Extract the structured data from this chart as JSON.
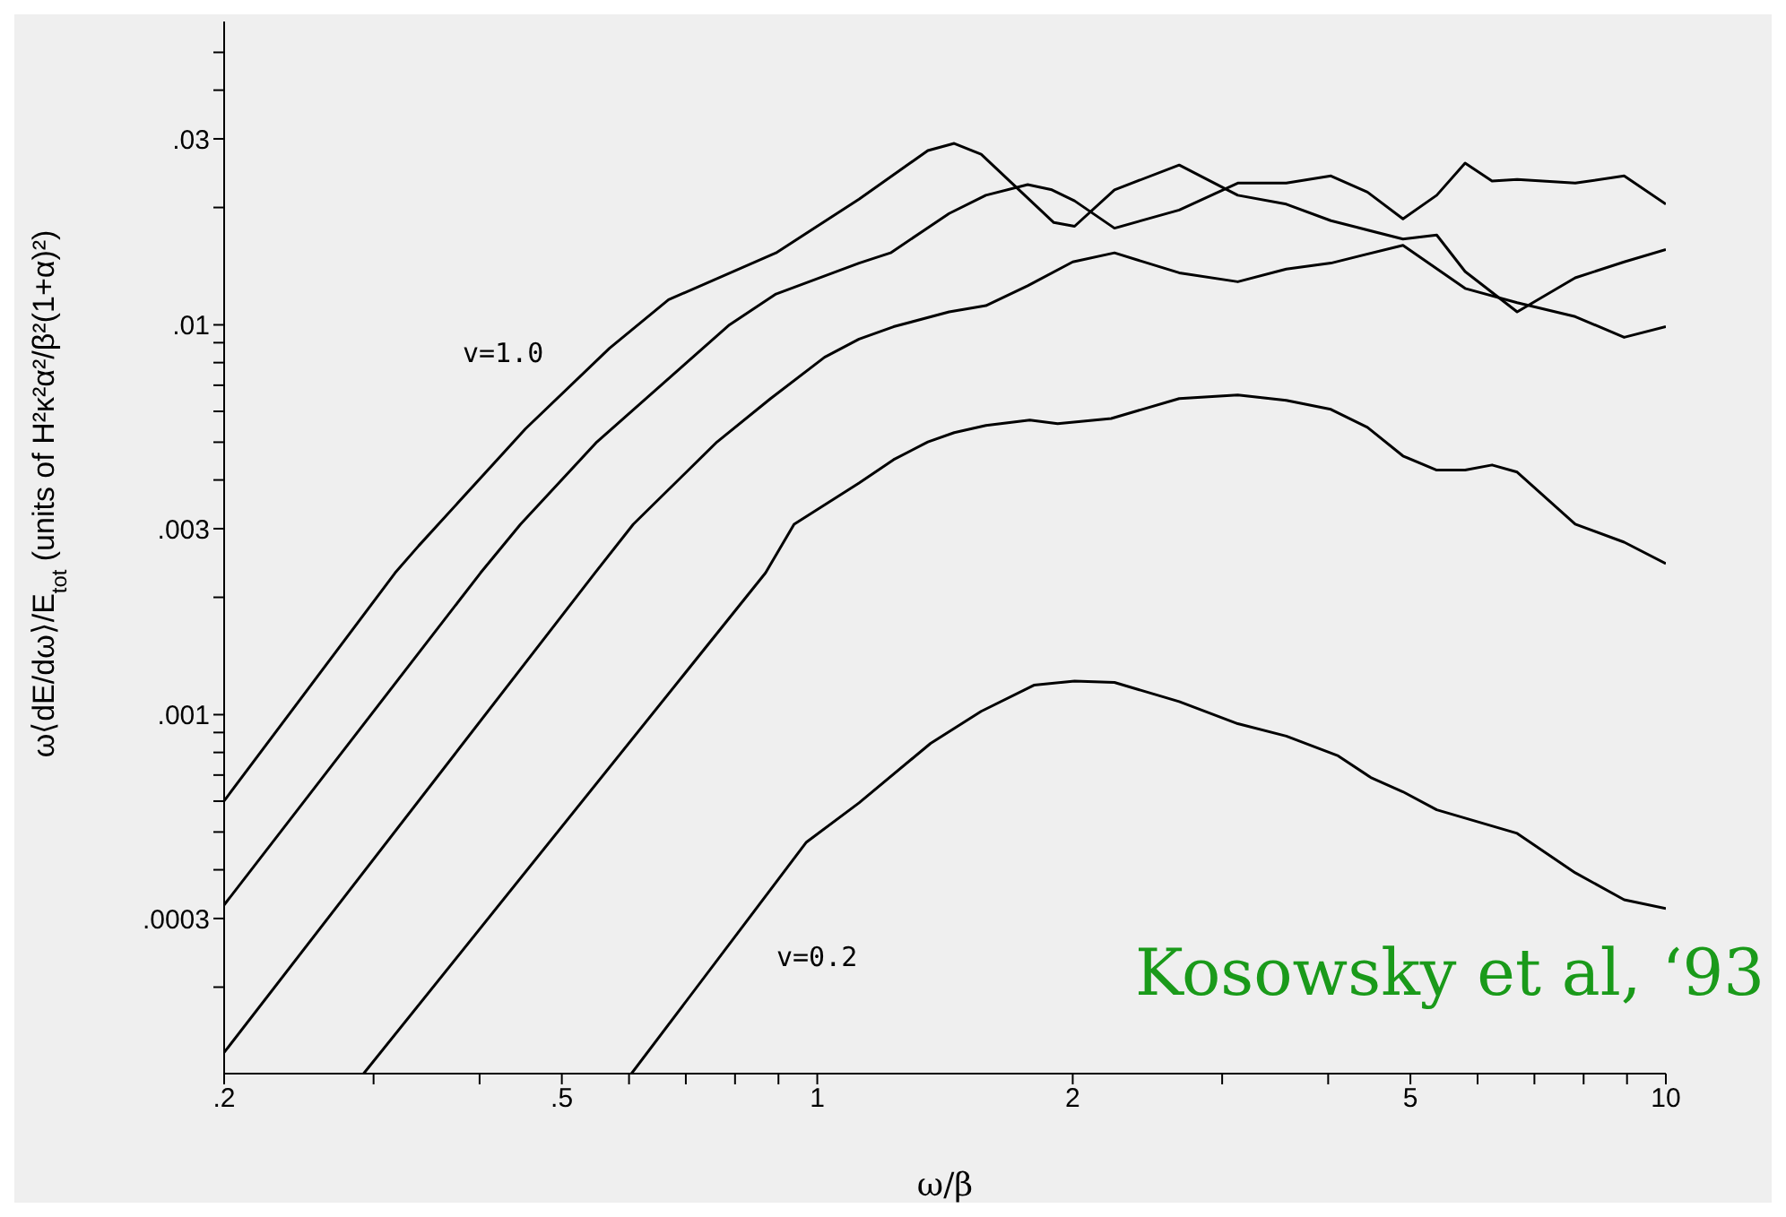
{
  "chart_data": {
    "type": "line",
    "xlabel": "ω/β",
    "ylabel": "ω⟨dE/dω⟩/E$_{tot}$    (units of H²κ²α²/β²(1+α)²)",
    "log": "xy",
    "grid": false,
    "legend": false,
    "marker": "none",
    "line_style": "solid",
    "xlim": [
      0.2,
      10
    ],
    "ylim": [
      0.00012,
      0.06
    ],
    "xticks": [
      {
        "value": 0.2,
        "label": ".2"
      },
      {
        "value": 0.3,
        "label": null
      },
      {
        "value": 0.4,
        "label": null
      },
      {
        "value": 0.5,
        "label": ".5"
      },
      {
        "value": 0.6,
        "label": null
      },
      {
        "value": 0.7,
        "label": null
      },
      {
        "value": 0.8,
        "label": null
      },
      {
        "value": 0.9,
        "label": null
      },
      1,
      2,
      {
        "value": 3,
        "label": null
      },
      {
        "value": 4,
        "label": null
      },
      5,
      {
        "value": 6,
        "label": null
      },
      {
        "value": 7,
        "label": null
      },
      {
        "value": 8,
        "label": null
      },
      {
        "value": 9,
        "label": null
      },
      10
    ],
    "yticks": [
      {
        "value": 0.0002,
        "label": null
      },
      {
        "value": 0.0003,
        "label": ".0003"
      },
      {
        "value": 0.0004,
        "label": null
      },
      {
        "value": 0.0005,
        "label": null
      },
      {
        "value": 0.0006,
        "label": null
      },
      {
        "value": 0.0007,
        "label": null
      },
      {
        "value": 0.0008,
        "label": null
      },
      {
        "value": 0.0009,
        "label": null
      },
      {
        "value": 0.001,
        "label": ".001"
      },
      {
        "value": 0.002,
        "label": null
      },
      {
        "value": 0.003,
        "label": ".003"
      },
      {
        "value": 0.004,
        "label": null
      },
      {
        "value": 0.005,
        "label": null
      },
      {
        "value": 0.006,
        "label": null
      },
      {
        "value": 0.007,
        "label": null
      },
      {
        "value": 0.008,
        "label": null
      },
      {
        "value": 0.009,
        "label": null
      },
      {
        "value": 0.01,
        "label": ".01"
      },
      {
        "value": 0.02,
        "label": null
      },
      {
        "value": 0.03,
        "label": ".03"
      },
      {
        "value": 0.04,
        "label": null
      },
      {
        "value": 0.05,
        "label": null
      }
    ],
    "series": [
      {
        "color": "#000000",
        "x": [
          0.2,
          0.318,
          0.339,
          0.453,
          0.569,
          0.668,
          0.894,
          1.12,
          1.35,
          1.45,
          1.56,
          1.9,
          2.01,
          2.24,
          2.67,
          3.13,
          3.57,
          4.03,
          4.9,
          5.37,
          5.8,
          6.68,
          7.82,
          8.93,
          10
        ],
        "values": [
          0.000601,
          0.00231,
          0.00271,
          0.00541,
          0.00871,
          0.0116,
          0.0153,
          0.021,
          0.028,
          0.0292,
          0.0274,
          0.0183,
          0.0179,
          0.0222,
          0.0257,
          0.0215,
          0.0204,
          0.0185,
          0.0166,
          0.017,
          0.0137,
          0.0108,
          0.0132,
          0.0145,
          0.0156
        ]
      },
      {
        "color": "#000000",
        "x": [
          0.2,
          0.401,
          0.447,
          0.55,
          0.788,
          0.894,
          1.12,
          1.22,
          1.43,
          1.58,
          1.77,
          1.89,
          2.01,
          2.24,
          2.67,
          3.13,
          3.57,
          4.03,
          4.45,
          4.9,
          5.37,
          5.8,
          6.24,
          6.68,
          7.82,
          8.93,
          10
        ],
        "values": [
          0.000325,
          0.00231,
          0.00308,
          0.00501,
          0.01,
          0.012,
          0.0144,
          0.0153,
          0.0193,
          0.0215,
          0.0229,
          0.0222,
          0.0208,
          0.0177,
          0.0197,
          0.0231,
          0.0231,
          0.0241,
          0.0219,
          0.0187,
          0.0215,
          0.026,
          0.0234,
          0.0236,
          0.0231,
          0.0241,
          0.0204
        ]
      },
      {
        "color": "#000000",
        "x": [
          0.2,
          0.547,
          0.607,
          0.762,
          0.881,
          1.02,
          1.12,
          1.23,
          1.43,
          1.58,
          1.77,
          2.0,
          2.24,
          2.67,
          3.13,
          3.57,
          4.03,
          4.9,
          5.8,
          6.68,
          7.82,
          8.93,
          10
        ],
        "values": [
          0.000136,
          0.00231,
          0.00308,
          0.00501,
          0.00647,
          0.00826,
          0.00919,
          0.00989,
          0.0108,
          0.0112,
          0.0126,
          0.0145,
          0.0153,
          0.0136,
          0.0129,
          0.0139,
          0.0144,
          0.016,
          0.0124,
          0.0114,
          0.0105,
          0.00929,
          0.00989
        ]
      },
      {
        "color": "#000000",
        "x": [
          0.292,
          0.869,
          0.939,
          1.12,
          1.23,
          1.35,
          1.45,
          1.58,
          1.78,
          1.92,
          2.22,
          2.67,
          3.13,
          3.57,
          4.03,
          4.45,
          4.9,
          5.37,
          5.8,
          6.24,
          6.68,
          7.82,
          8.93,
          10
        ],
        "values": [
          0.00012,
          0.00231,
          0.00308,
          0.00393,
          0.00451,
          0.00501,
          0.00529,
          0.00552,
          0.0057,
          0.00558,
          0.00575,
          0.00647,
          0.00661,
          0.0064,
          0.00607,
          0.00546,
          0.00461,
          0.00424,
          0.00424,
          0.00437,
          0.00419,
          0.00308,
          0.00277,
          0.00244
        ]
      },
      {
        "color": "#000000",
        "x": [
          0.604,
          0.971,
          1.12,
          1.36,
          1.56,
          1.8,
          2.01,
          2.24,
          2.67,
          3.13,
          3.57,
          4.11,
          4.49,
          4.9,
          5.37,
          6.68,
          7.82,
          8.93,
          10
        ],
        "values": [
          0.00012,
          0.000471,
          0.000594,
          0.000844,
          0.00102,
          0.00119,
          0.00122,
          0.00121,
          0.00108,
          0.000948,
          0.000881,
          0.000784,
          0.00069,
          0.000634,
          0.00057,
          0.000496,
          0.000393,
          0.000335,
          0.000318
        ]
      }
    ],
    "annotations": [
      "v=1.0",
      "v=0.2",
      "Kosowsky et al, ‘93"
    ]
  }
}
